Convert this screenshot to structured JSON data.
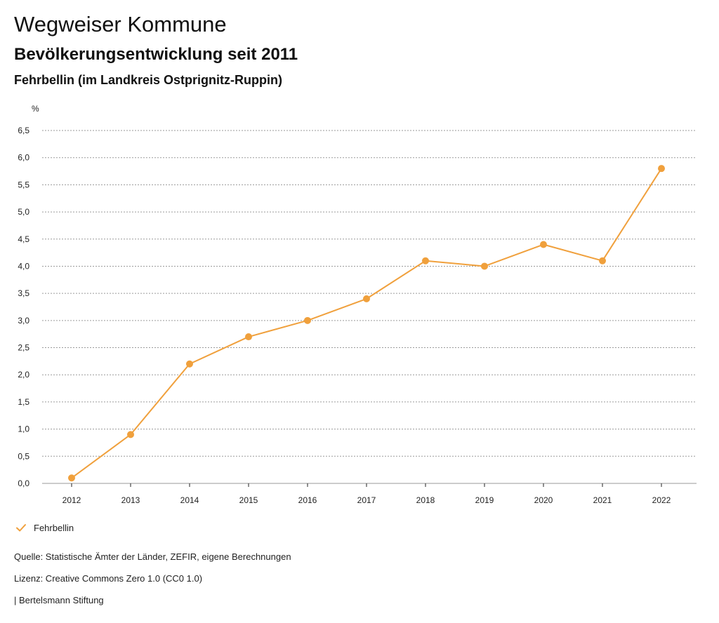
{
  "header": {
    "title": "Wegweiser Kommune",
    "subtitle": "Bevölkerungsentwicklung seit 2011",
    "region": "Fehrbellin (im Landkreis Ostprignitz-Ruppin)"
  },
  "chart_data": {
    "type": "line",
    "title": "Bevölkerungsentwicklung seit 2011",
    "ylabel": "%",
    "xlabel": "",
    "categories": [
      "2012",
      "2013",
      "2014",
      "2015",
      "2016",
      "2017",
      "2018",
      "2019",
      "2020",
      "2021",
      "2022"
    ],
    "series": [
      {
        "name": "Fehrbellin",
        "values": [
          0.1,
          0.9,
          2.2,
          2.7,
          3.0,
          3.4,
          4.1,
          4.0,
          4.4,
          4.1,
          5.8
        ]
      }
    ],
    "ylim": [
      0,
      6.5
    ],
    "yticks": [
      "0,0",
      "0,5",
      "1,0",
      "1,5",
      "2,0",
      "2,5",
      "3,0",
      "3,5",
      "4,0",
      "4,5",
      "5,0",
      "5,5",
      "6,0",
      "6,5"
    ],
    "grid": true,
    "legend_position": "bottom-left"
  },
  "colors": {
    "series": "#f0a03c",
    "grid": "#9a9a9a",
    "axis": "#222222"
  },
  "legend": {
    "label": "Fehrbellin",
    "icon": "checkmark-icon"
  },
  "footer": {
    "source": "Quelle: Statistische Ämter der Länder, ZEFIR, eigene Berechnungen",
    "license": "Lizenz: Creative Commons Zero 1.0 (CC0 1.0)",
    "org": "| Bertelsmann Stiftung"
  }
}
